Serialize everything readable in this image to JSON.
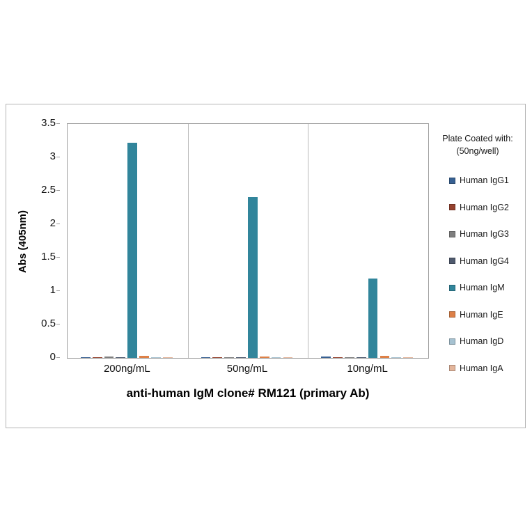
{
  "legend": {
    "title_line1": "Plate Coated with:",
    "title_line2": "(50ng/well)"
  },
  "chart_data": {
    "type": "bar",
    "title": "",
    "xlabel": "anti-human IgM clone# RM121 (primary Ab)",
    "ylabel": "Abs (405nm)",
    "ylim": [
      0,
      3.5
    ],
    "yticks": [
      "0",
      "0.5",
      "1",
      "1.5",
      "2",
      "2.5",
      "3",
      "3.5"
    ],
    "ytick_values": [
      0,
      0.5,
      1,
      1.5,
      2,
      2.5,
      3,
      3.5
    ],
    "grid": "category-separators-only",
    "legend_position": "right",
    "categories": [
      "200ng/mL",
      "50ng/mL",
      "10ng/mL"
    ],
    "series": [
      {
        "name": "Human IgG1",
        "color": "#376092",
        "values": [
          0.01,
          0.005,
          0.02
        ]
      },
      {
        "name": "Human IgG2",
        "color": "#95412E",
        "values": [
          0.01,
          0.005,
          0.005
        ]
      },
      {
        "name": "Human IgG3",
        "color": "#7F7F7F",
        "values": [
          0.02,
          0.005,
          0.005
        ]
      },
      {
        "name": "Human IgG4",
        "color": "#4F5A6E",
        "values": [
          0.01,
          0.005,
          0.005
        ]
      },
      {
        "name": "Human IgM",
        "color": "#31859B",
        "values": [
          3.22,
          2.41,
          1.19
        ]
      },
      {
        "name": "Human IgE",
        "color": "#DD8047",
        "values": [
          0.03,
          0.02,
          0.03
        ]
      },
      {
        "name": "Human IgD",
        "color": "#A6C2D1",
        "values": [
          0.01,
          0.005,
          0.005
        ]
      },
      {
        "name": "Human IgA",
        "color": "#E3B59B",
        "values": [
          0.01,
          0.005,
          0.005
        ]
      }
    ]
  }
}
